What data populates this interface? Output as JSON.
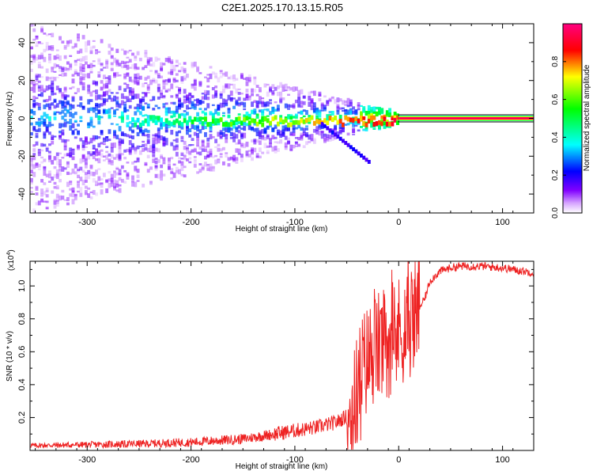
{
  "title": "C2E1.2025.170.13.15.R05",
  "chart_data": [
    {
      "type": "heatmap",
      "xlabel": "Height of straight line (km)",
      "ylabel": "Frequency (Hz)",
      "xlim": [
        -355,
        130
      ],
      "ylim": [
        -50,
        50
      ],
      "x_ticks": [
        -300,
        -200,
        -100,
        0,
        100
      ],
      "y_ticks": [
        -40,
        -20,
        0,
        20,
        40
      ],
      "colorbar": {
        "label": "Normalized spectral amplitude",
        "range": [
          0,
          1
        ],
        "ticks": [
          0.0,
          0.2,
          0.4,
          0.6,
          0.8
        ],
        "tick_labels": [
          "0.0",
          "0.2",
          "0.4",
          "0.6",
          "0.8"
        ],
        "colors": [
          "#ffffff",
          "#8000ff",
          "#0000ff",
          "#00ffff",
          "#00ff00",
          "#ffff00",
          "#ff0000",
          "#ff0080"
        ]
      },
      "features": {
        "carrier_band": {
          "x_range": [
            0,
            130
          ],
          "frequency": 0,
          "amplitude": 0.95
        },
        "scintillation_region": {
          "x_range": [
            -355,
            0
          ],
          "frequency_spread_hz": [
            -45,
            45
          ]
        },
        "descending_branch": {
          "x_range": [
            -75,
            -30
          ],
          "frequency_range": [
            -3,
            -23
          ]
        }
      }
    },
    {
      "type": "line",
      "xlabel": "Height of straight line (km)",
      "ylabel": "SNR (10 * v/v)",
      "y_scale_label": "(x10",
      "y_scale_exponent": "4",
      "xlim": [
        -355,
        130
      ],
      "ylim": [
        0,
        11500
      ],
      "x_ticks": [
        -300,
        -200,
        -100,
        0,
        100
      ],
      "y_ticks": [
        2000,
        4000,
        6000,
        8000,
        10000
      ],
      "y_tick_labels": [
        "0.2",
        "0.4",
        "0.6",
        "0.8",
        "1.0"
      ],
      "color": "#ee2222",
      "series": [
        {
          "x": [
            -355,
            -300,
            -250,
            -200,
            -150,
            -110,
            -80,
            -60,
            -45,
            -35,
            -25,
            -15,
            -5,
            5,
            10,
            15,
            25,
            30,
            40,
            50,
            60,
            70,
            80,
            90,
            100,
            110,
            120,
            130
          ],
          "y": [
            300,
            350,
            400,
            500,
            700,
            1100,
            1400,
            1700,
            2300,
            5000,
            6000,
            6400,
            6900,
            7500,
            7800,
            8200,
            9200,
            10300,
            10900,
            11100,
            11200,
            11200,
            11200,
            11150,
            11100,
            11000,
            10900,
            10800
          ]
        }
      ]
    }
  ]
}
